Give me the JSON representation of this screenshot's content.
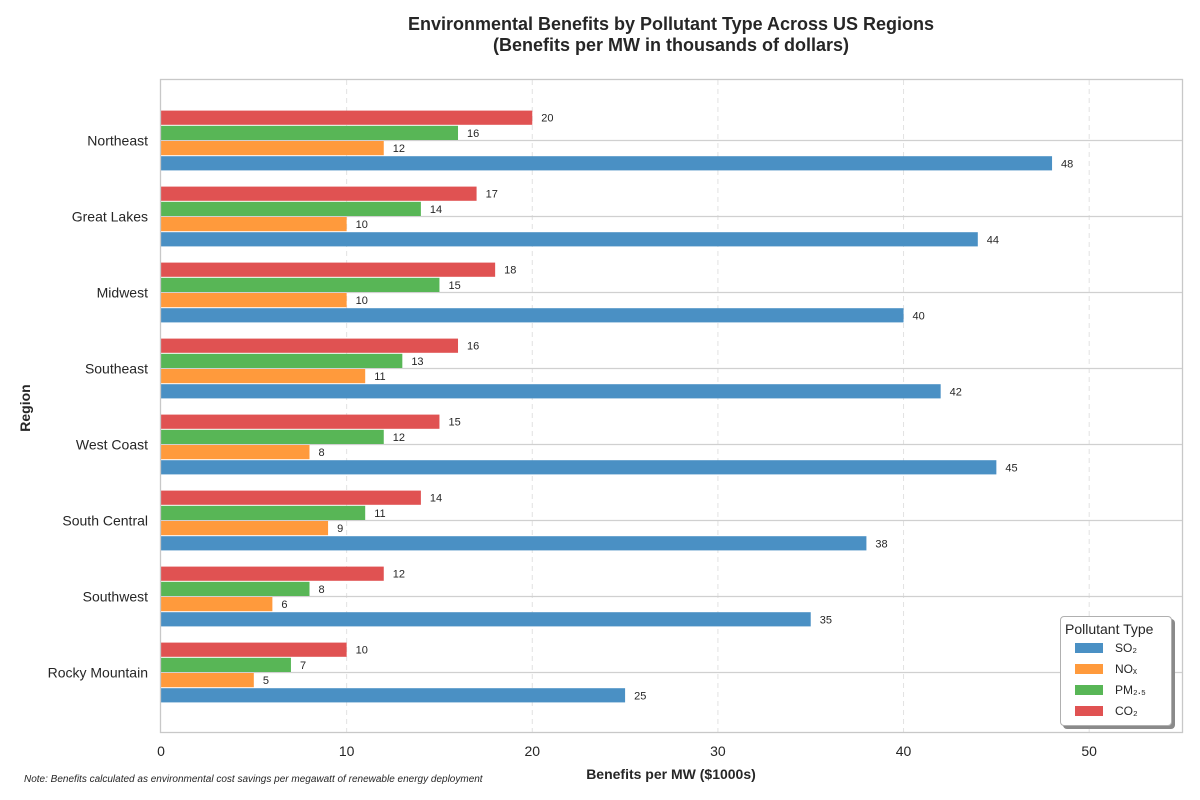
{
  "chart_data": {
    "type": "bar",
    "orientation": "horizontal",
    "title": "Environmental Benefits by Pollutant Type Across US Regions",
    "subtitle": "(Benefits per MW in thousands of dollars)",
    "xlabel": "Benefits per MW ($1000s)",
    "ylabel": "Region",
    "xlim": [
      0,
      55
    ],
    "xticks": [
      0,
      10,
      20,
      30,
      40,
      50
    ],
    "grid": "x-dashed",
    "legend_title": "Pollutant Type",
    "legend_position": "lower-right",
    "categories": [
      "Northeast",
      "Great Lakes",
      "Midwest",
      "Southeast",
      "West Coast",
      "South Central",
      "Southwest",
      "Rocky Mountain"
    ],
    "series": [
      {
        "name": "SO₂",
        "color": "#4a90c4",
        "values": [
          48,
          44,
          40,
          42,
          45,
          38,
          35,
          25
        ]
      },
      {
        "name": "NOₓ",
        "color": "#ff9a3c",
        "values": [
          12,
          10,
          10,
          11,
          8,
          9,
          6,
          5
        ]
      },
      {
        "name": "PM₂.₅",
        "color": "#58b656",
        "values": [
          16,
          14,
          15,
          13,
          12,
          11,
          8,
          7
        ]
      },
      {
        "name": "CO₂",
        "color": "#e05252",
        "values": [
          20,
          17,
          18,
          16,
          15,
          14,
          12,
          10
        ]
      }
    ]
  },
  "note": "Note: Benefits calculated as environmental cost savings per megawatt of renewable energy deployment"
}
